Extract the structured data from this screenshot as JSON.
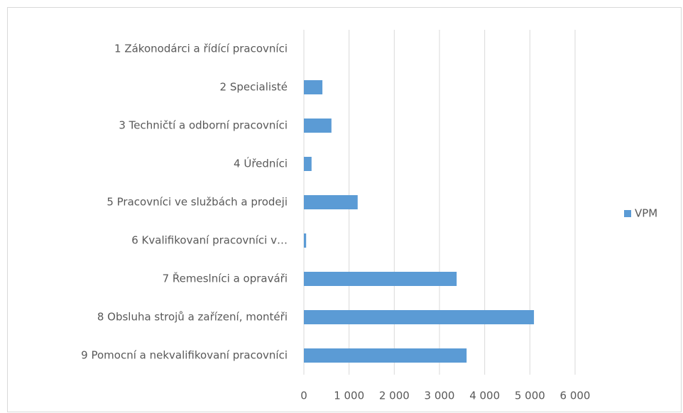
{
  "chart_data": {
    "type": "bar",
    "orientation": "horizontal",
    "categories": [
      "1 Zákonodárci a řídící pracovníci",
      "2 Specialisté",
      "3 Techničtí a odborní pracovníci",
      "4 Úředníci",
      "5 Pracovníci ve službách a prodeji",
      "6 Kvalifikovaní pracovníci v…",
      "7 Řemeslníci a opraváři",
      "8 Obsluha strojů a zařízení, montéři",
      "9 Pomocní a nekvalifikovaní pracovníci"
    ],
    "series": [
      {
        "name": "VPM",
        "color": "#5b9bd5",
        "values": [
          0,
          410,
          610,
          170,
          1190,
          50,
          3380,
          5090,
          3600
        ]
      }
    ],
    "xlim": [
      0,
      6000
    ],
    "xticks": [
      0,
      {
        "value": 1000,
        "label": "1 000"
      },
      {
        "value": 2000,
        "label": "2 000"
      },
      {
        "value": 3000,
        "label": "3 000"
      },
      {
        "value": 4000,
        "label": "4 000"
      },
      {
        "value": 5000,
        "label": "5 000"
      },
      {
        "value": 6000,
        "label": "6 000"
      }
    ],
    "grid": true,
    "legend": "right"
  }
}
